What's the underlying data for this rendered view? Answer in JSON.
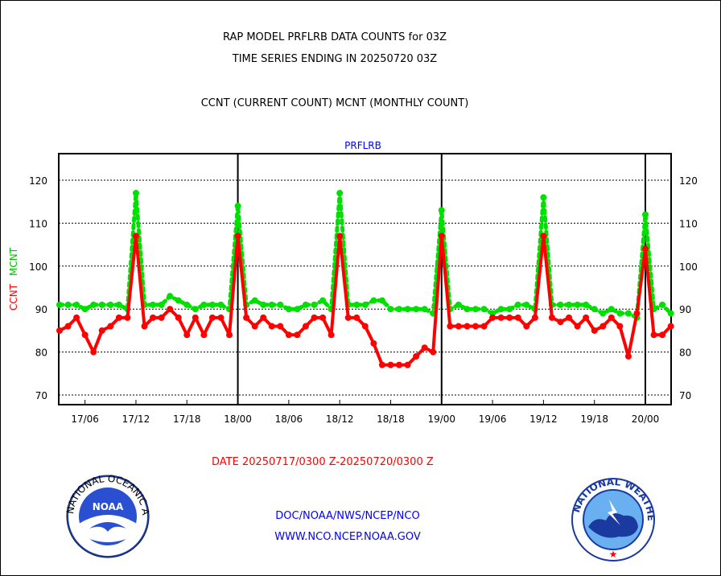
{
  "title_line1": "RAP MODEL PRFLRB DATA COUNTS for 03Z",
  "title_line2": "TIME SERIES ENDING IN 20250720 03Z",
  "subtitle": "CCNT (CURRENT COUNT) MCNT (MONTHLY COUNT)",
  "date_range": "DATE 20250717/0300 Z-20250720/0300 Z",
  "footer_line1": "DOC/NOAA/NWS/NCEP/NCO",
  "footer_line2": "WWW.NCO.NCEP.NOAA.GOV",
  "logos": {
    "left": "NOAA",
    "right": "NATIONAL WEATHER SERVICE"
  },
  "colors": {
    "ccnt": "#ff0000",
    "mcnt": "#00e000",
    "link": "#0000ff"
  },
  "chart_data": {
    "type": "line",
    "title": "PRFLRB",
    "ylabel_ccnt": "CCNT",
    "ylabel_mcnt": "MCNT",
    "ylim": [
      68,
      126
    ],
    "yticks": [
      70,
      80,
      90,
      100,
      110,
      120
    ],
    "x_start_hour": 0,
    "x_end_hour": 72,
    "x_note": "hours after 20250717/0300Z",
    "xtick_hours": [
      3,
      9,
      15,
      21,
      27,
      33,
      39,
      45,
      51,
      57,
      63,
      69
    ],
    "xtick_labels": [
      "17/06",
      "17/12",
      "17/18",
      "18/00",
      "18/06",
      "18/12",
      "18/18",
      "19/00",
      "19/06",
      "19/12",
      "19/18",
      "20/00"
    ],
    "day_boundary_hours": [
      21,
      45,
      69
    ],
    "grid": true,
    "series": [
      {
        "name": "CCNT",
        "color": "#ff0000",
        "values": [
          85,
          86,
          88,
          84,
          80,
          85,
          86,
          88,
          88,
          107,
          86,
          88,
          88,
          90,
          88,
          84,
          88,
          84,
          88,
          88,
          84,
          107,
          88,
          86,
          88,
          86,
          86,
          84,
          84,
          86,
          88,
          88,
          84,
          107,
          88,
          88,
          86,
          82,
          77,
          77,
          77,
          77,
          79,
          81,
          80,
          107,
          86,
          86,
          86,
          86,
          86,
          88,
          88,
          88,
          88,
          86,
          88,
          107,
          88,
          87,
          88,
          86,
          88,
          85,
          86,
          88,
          86,
          79,
          89,
          104,
          84,
          84,
          86
        ]
      },
      {
        "name": "MCNT",
        "color": "#00e000",
        "values": [
          91,
          91,
          91,
          90,
          91,
          91,
          91,
          91,
          90,
          117,
          91,
          91,
          91,
          93,
          92,
          91,
          90,
          91,
          91,
          91,
          90,
          114,
          91,
          92,
          91,
          91,
          91,
          90,
          90,
          91,
          91,
          92,
          90,
          117,
          91,
          91,
          91,
          92,
          92,
          90,
          90,
          90,
          90,
          90,
          89,
          113,
          90,
          91,
          90,
          90,
          90,
          89,
          90,
          90,
          91,
          91,
          90,
          116,
          91,
          91,
          91,
          91,
          91,
          90,
          89,
          90,
          89,
          89,
          88,
          112,
          90,
          91,
          89
        ]
      }
    ]
  }
}
